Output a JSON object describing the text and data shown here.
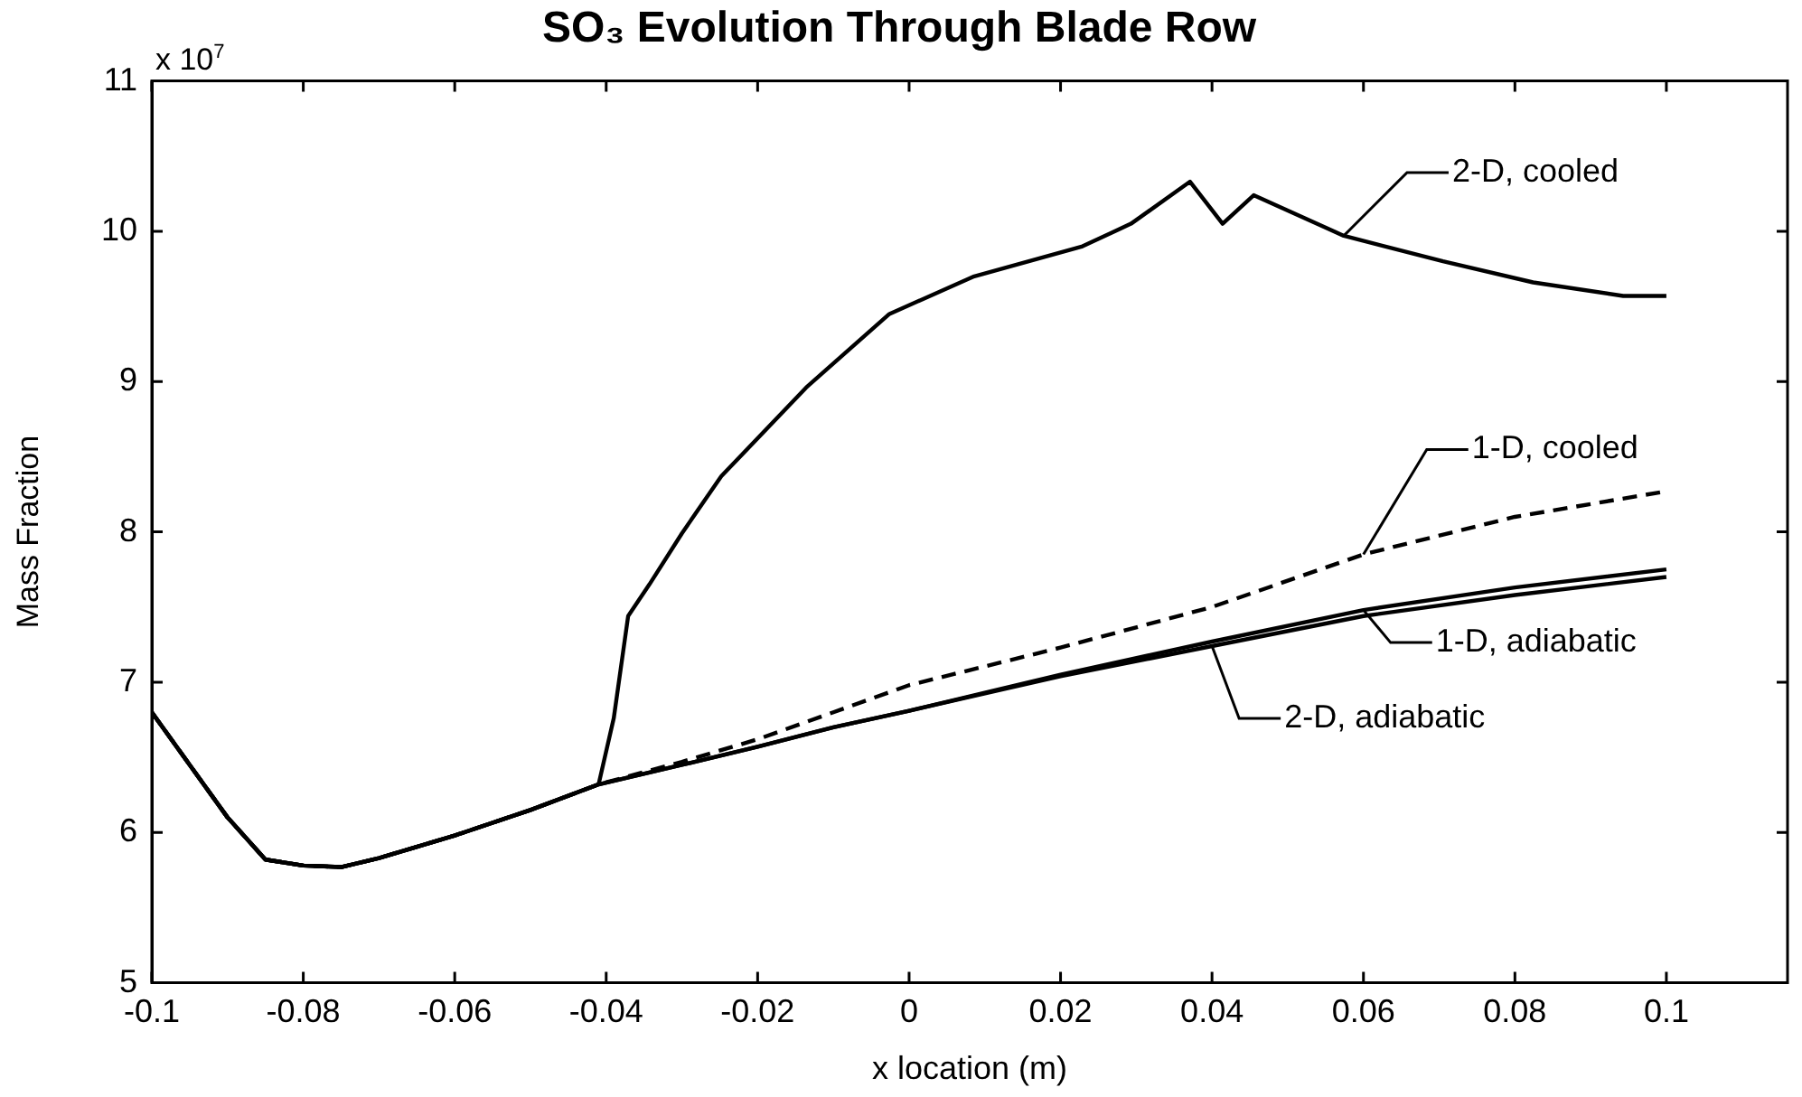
{
  "chart_data": {
    "type": "line",
    "title": "SO₃ Evolution Through Blade Row",
    "xlabel": "x location (m)",
    "ylabel": "Mass Fraction",
    "annotations": [
      "x 10$^{7}$"
    ],
    "xlim": [
      -0.1,
      0.116
    ],
    "xticks": [
      {
        "value": -0.1,
        "label": "-0.1"
      },
      {
        "value": -0.08,
        "label": "-0.08"
      },
      {
        "value": -0.06,
        "label": "-0.06"
      },
      {
        "value": -0.04,
        "label": "-0.04"
      },
      {
        "value": -0.02,
        "label": "-0.02"
      },
      0,
      {
        "value": 0.02,
        "label": "0.02"
      },
      {
        "value": 0.04,
        "label": "0.04"
      },
      {
        "value": 0.06,
        "label": "0.06"
      },
      {
        "value": 0.08,
        "label": "0.08"
      },
      {
        "value": 0.1,
        "label": "0.1"
      }
    ],
    "ylim": [
      5,
      11
    ],
    "yticks": [
      5,
      6,
      7,
      8,
      9,
      10,
      11
    ],
    "grid": false,
    "marker": "none",
    "series": [
      {
        "name": "2-D, cooled",
        "color": "#000000",
        "line_style": "solid",
        "x": [
          -0.1,
          -0.095,
          -0.09,
          -0.085,
          -0.08,
          -0.075,
          -0.07,
          -0.06,
          -0.05,
          -0.041,
          -0.039,
          -0.0371,
          -0.0343,
          -0.03,
          -0.0248,
          -0.0136,
          -0.0026,
          0.0086,
          0.0229,
          0.0293,
          0.0371,
          0.0414,
          0.0455,
          0.0574,
          0.0705,
          0.0824,
          0.0943,
          0.1
        ],
        "values": [
          6.8,
          6.45,
          6.1,
          5.82,
          5.78,
          5.77,
          5.83,
          5.98,
          6.15,
          6.32,
          6.76,
          7.44,
          7.65,
          7.99,
          8.37,
          8.96,
          9.45,
          9.7,
          9.9,
          10.05,
          10.33,
          10.05,
          10.24,
          9.97,
          9.8,
          9.66,
          9.57,
          9.57
        ]
      },
      {
        "name": "1-D, cooled",
        "color": "#000000",
        "line_style": "dashed",
        "x": [
          -0.1,
          -0.095,
          -0.09,
          -0.085,
          -0.08,
          -0.075,
          -0.07,
          -0.06,
          -0.05,
          -0.041,
          -0.03,
          -0.02,
          -0.01,
          0,
          0.02,
          0.04,
          0.06,
          0.08,
          0.1
        ],
        "values": [
          6.8,
          6.45,
          6.1,
          5.82,
          5.78,
          5.77,
          5.83,
          5.98,
          6.15,
          6.32,
          6.47,
          6.62,
          6.8,
          6.98,
          7.23,
          7.5,
          7.85,
          8.1,
          8.27
        ]
      },
      {
        "name": "1-D, adiabatic",
        "color": "#000000",
        "line_style": "solid",
        "x": [
          -0.1,
          -0.095,
          -0.09,
          -0.085,
          -0.08,
          -0.075,
          -0.07,
          -0.06,
          -0.05,
          -0.041,
          -0.03,
          -0.02,
          -0.01,
          0,
          0.02,
          0.04,
          0.06,
          0.08,
          0.1
        ],
        "values": [
          6.8,
          6.45,
          6.1,
          5.82,
          5.78,
          5.77,
          5.83,
          5.98,
          6.15,
          6.32,
          6.45,
          6.57,
          6.7,
          6.81,
          7.05,
          7.27,
          7.48,
          7.63,
          7.75
        ]
      },
      {
        "name": "2-D, adiabatic",
        "color": "#000000",
        "line_style": "solid",
        "x": [
          -0.1,
          -0.095,
          -0.09,
          -0.085,
          -0.08,
          -0.075,
          -0.07,
          -0.06,
          -0.05,
          -0.041,
          -0.03,
          -0.02,
          -0.01,
          0,
          0.02,
          0.04,
          0.06,
          0.08,
          0.1
        ],
        "values": [
          6.8,
          6.45,
          6.1,
          5.82,
          5.78,
          5.77,
          5.83,
          5.98,
          6.15,
          6.32,
          6.45,
          6.57,
          6.7,
          6.81,
          7.04,
          7.24,
          7.44,
          7.58,
          7.7
        ]
      }
    ]
  }
}
